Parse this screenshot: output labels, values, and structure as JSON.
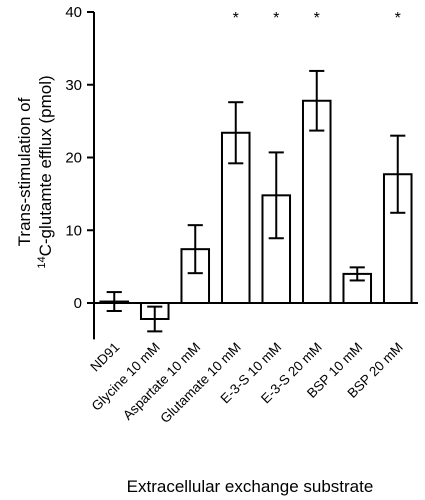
{
  "chart_data": {
    "type": "bar",
    "categories": [
      "ND91",
      "Glycine 10 mM",
      "Aspartate 10 mM",
      "Glutamate 10 mM",
      "E-3-S 10 mM",
      "E-3-S 20 mM",
      "BSP 10 mM",
      "BSP 20 mM"
    ],
    "values": [
      0.2,
      -2.2,
      7.4,
      23.4,
      14.8,
      27.8,
      4.0,
      17.7
    ],
    "errors": [
      1.3,
      1.7,
      3.3,
      4.2,
      5.9,
      4.1,
      0.9,
      5.3
    ],
    "significance": [
      "",
      "",
      "",
      "*",
      "*",
      "*",
      "",
      "*"
    ],
    "ylabel_line1": "Trans-stimulation of",
    "ylabel_line2_sup": "14",
    "ylabel_line2_rest": "C-glutamte efflux (pmol)",
    "xlabel": "Extracellular exchange substrate",
    "ylim": [
      -5,
      40
    ],
    "yticks": [
      0,
      10,
      20,
      30,
      40
    ],
    "grid": false
  }
}
